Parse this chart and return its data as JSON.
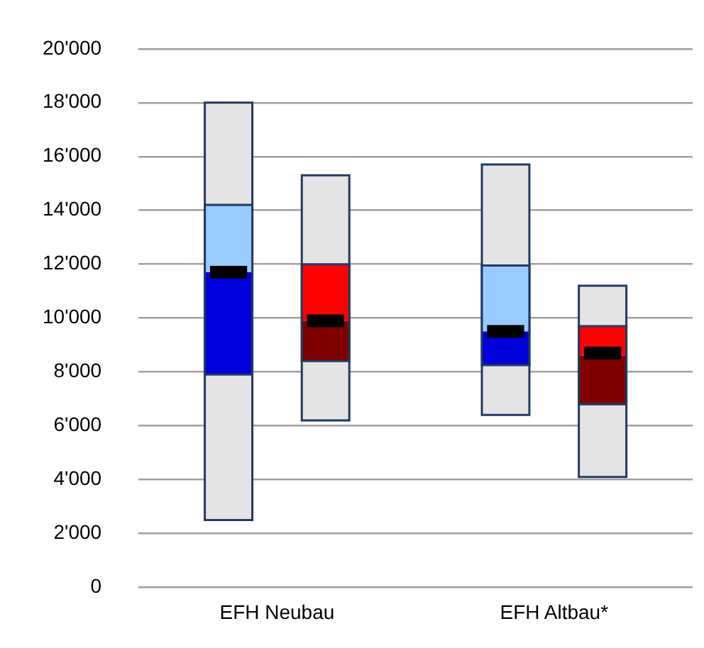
{
  "chart_data": {
    "type": "box",
    "categories": [
      "EFH Neubau",
      "EFH Altbau*"
    ],
    "series": [
      {
        "color": "#0000dd",
        "boxes": [
          {
            "low": 2500,
            "q1": 7900,
            "median": 11700,
            "q3": 14200,
            "high": 18000,
            "mean": 11700
          },
          {
            "low": 6400,
            "q1": 8250,
            "median": 9500,
            "q3": 11950,
            "high": 15700,
            "mean": 9500
          }
        ]
      },
      {
        "color": "#800000",
        "boxes": [
          {
            "low": 6200,
            "q1": 8400,
            "median": 9900,
            "q3": 12000,
            "high": 15300,
            "mean": 9900
          },
          {
            "low": 4100,
            "q1": 6800,
            "median": 8600,
            "q3": 9700,
            "high": 11200,
            "mean": 8700
          }
        ]
      }
    ],
    "ylim": [
      0,
      20000
    ],
    "yticks": [
      0,
      {
        "value": 2000,
        "label": "2'000"
      },
      {
        "value": 4000,
        "label": "4'000"
      },
      {
        "value": 6000,
        "label": "6'000"
      },
      {
        "value": 8000,
        "label": "8'000"
      },
      {
        "value": 10000,
        "label": "10'000"
      },
      {
        "value": 12000,
        "label": "12'000"
      },
      {
        "value": 14000,
        "label": "14'000"
      },
      {
        "value": 16000,
        "label": "16'000"
      },
      {
        "value": 18000,
        "label": "18'000"
      },
      {
        "value": 20000,
        "label": "20'000"
      }
    ],
    "grid": "y",
    "legend": false
  }
}
